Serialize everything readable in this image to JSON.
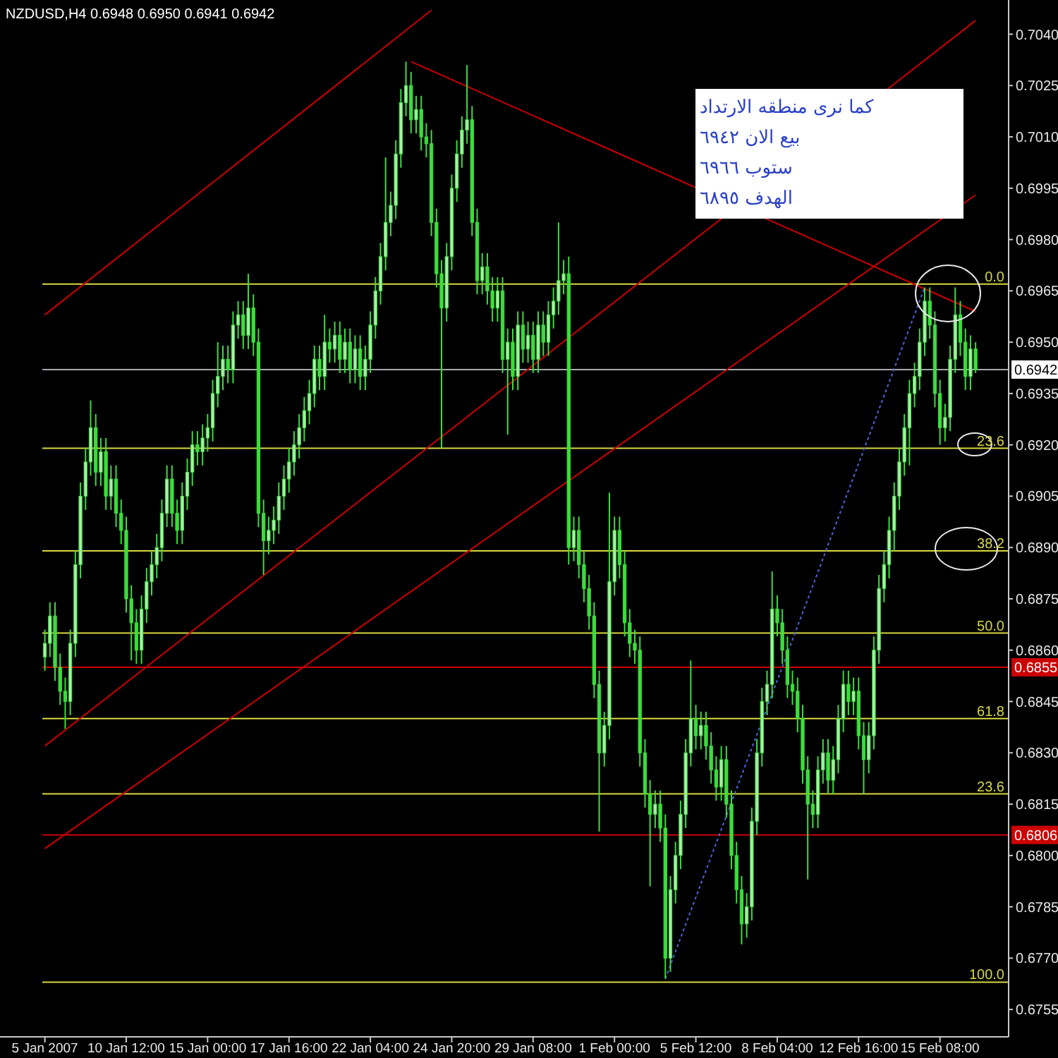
{
  "chart_data": {
    "type": "candlestick",
    "title": "NZDUSD,H4  0.6948 0.6950 0.6941 0.6942",
    "categories": [
      "5 Jan 2007",
      null,
      null,
      null,
      null,
      null,
      null,
      null,
      null,
      null,
      null,
      null,
      null,
      null,
      null,
      null,
      "10 Jan 12:00",
      null,
      null,
      null,
      null,
      null,
      null,
      null,
      null,
      null,
      null,
      null,
      null,
      null,
      null,
      null,
      "15 Jan 00:00",
      null,
      null,
      null,
      null,
      null,
      null,
      null,
      null,
      null,
      null,
      null,
      null,
      null,
      null,
      null,
      "17 Jan 16:00",
      null,
      null,
      null,
      null,
      null,
      null,
      null,
      null,
      null,
      null,
      null,
      null,
      null,
      null,
      null,
      "22 Jan 04:00",
      null,
      null,
      null,
      null,
      null,
      null,
      null,
      null,
      null,
      null,
      null,
      null,
      null,
      null,
      null,
      "24 Jan 20:00",
      null,
      null,
      null,
      null,
      null,
      null,
      null,
      null,
      null,
      null,
      null,
      null,
      null,
      null,
      null,
      "29 Jan 08:00",
      null,
      null,
      null,
      null,
      null,
      null,
      null,
      null,
      null,
      null,
      null,
      null,
      null,
      null,
      null,
      "1 Feb 00:00",
      null,
      null,
      null,
      null,
      null,
      null,
      null,
      null,
      null,
      null,
      null,
      null,
      null,
      null,
      null,
      "5 Feb 12:00",
      null,
      null,
      null,
      null,
      null,
      null,
      null,
      null,
      null,
      null,
      null,
      null,
      null,
      null,
      null,
      "8 Feb 04:00",
      null,
      null,
      null,
      null,
      null,
      null,
      null,
      null,
      null,
      null,
      null,
      null,
      null,
      null,
      null,
      "12 Feb 16:00",
      null,
      null,
      null,
      null,
      null,
      null,
      null,
      null,
      null,
      null,
      null,
      null,
      null,
      null,
      null,
      "15 Feb 08:00",
      null,
      null,
      null,
      null,
      null,
      null,
      null
    ],
    "ylim": [
      0.6747,
      0.705
    ],
    "yticks": [
      {
        "value": 0.6755,
        "label": "0.6755"
      },
      {
        "value": 0.677,
        "label": "0.6770"
      },
      {
        "value": 0.6785,
        "label": "0.6785"
      },
      {
        "value": 0.68,
        "label": "0.6800"
      },
      {
        "value": 0.6815,
        "label": "0.6815"
      },
      {
        "value": 0.683,
        "label": "0.6830"
      },
      {
        "value": 0.6845,
        "label": "0.6845"
      },
      {
        "value": 0.686,
        "label": "0.6860"
      },
      {
        "value": 0.6875,
        "label": "0.6875"
      },
      {
        "value": 0.689,
        "label": "0.6890"
      },
      {
        "value": 0.6905,
        "label": "0.6905"
      },
      {
        "value": 0.692,
        "label": "0.6920"
      },
      {
        "value": 0.6935,
        "label": "0.6935"
      },
      {
        "value": 0.695,
        "label": "0.6950"
      },
      {
        "value": 0.6965,
        "label": "0.6965"
      },
      {
        "value": 0.698,
        "label": "0.6980"
      },
      {
        "value": 0.6995,
        "label": "0.6995"
      },
      {
        "value": 0.701,
        "label": "0.7010"
      },
      {
        "value": 0.7025,
        "label": "0.7025"
      },
      {
        "value": 0.704,
        "label": "0.7040"
      }
    ],
    "series": [
      {
        "type": "candlestick",
        "color": "#3cdc3c",
        "ohlc": [
          [
            0.6858,
            0.6866,
            0.6854,
            0.6862
          ],
          [
            0.6862,
            0.6874,
            0.6858,
            0.687
          ],
          [
            0.687,
            0.6874,
            0.6851,
            0.6855
          ],
          [
            0.6855,
            0.6859,
            0.6844,
            0.6848
          ],
          [
            0.6848,
            0.6852,
            0.6837,
            0.6845
          ],
          [
            0.6845,
            0.6866,
            0.6841,
            0.6862
          ],
          [
            0.6862,
            0.6889,
            0.6858,
            0.6885
          ],
          [
            0.6885,
            0.6909,
            0.6881,
            0.6905
          ],
          [
            0.6905,
            0.6919,
            0.6901,
            0.6915
          ],
          [
            0.6915,
            0.6933,
            0.6911,
            0.6925
          ],
          [
            0.6925,
            0.6929,
            0.6908,
            0.6912
          ],
          [
            0.6912,
            0.6922,
            0.6908,
            0.6918
          ],
          [
            0.6918,
            0.6922,
            0.6901,
            0.6905
          ],
          [
            0.6905,
            0.6914,
            0.6901,
            0.691
          ],
          [
            0.691,
            0.6914,
            0.6896,
            0.69
          ],
          [
            0.69,
            0.6904,
            0.6891,
            0.6895
          ],
          [
            0.6895,
            0.6899,
            0.6871,
            0.6875
          ],
          [
            0.6875,
            0.6879,
            0.6857,
            0.6868
          ],
          [
            0.6868,
            0.6872,
            0.6856,
            0.686
          ],
          [
            0.686,
            0.6876,
            0.6856,
            0.6872
          ],
          [
            0.6872,
            0.6884,
            0.6868,
            0.688
          ],
          [
            0.688,
            0.6889,
            0.6876,
            0.6885
          ],
          [
            0.6885,
            0.6894,
            0.6881,
            0.689
          ],
          [
            0.689,
            0.6904,
            0.6886,
            0.69
          ],
          [
            0.69,
            0.6914,
            0.6896,
            0.691
          ],
          [
            0.691,
            0.6914,
            0.6896,
            0.69
          ],
          [
            0.69,
            0.6904,
            0.6891,
            0.6895
          ],
          [
            0.6895,
            0.6909,
            0.6891,
            0.6905
          ],
          [
            0.6905,
            0.6916,
            0.6901,
            0.6912
          ],
          [
            0.6912,
            0.6924,
            0.6908,
            0.692
          ],
          [
            0.692,
            0.6924,
            0.6914,
            0.6918
          ],
          [
            0.6918,
            0.6926,
            0.6914,
            0.6922
          ],
          [
            0.6922,
            0.6929,
            0.6918,
            0.6925
          ],
          [
            0.6925,
            0.6939,
            0.6921,
            0.6935
          ],
          [
            0.6935,
            0.695,
            0.6931,
            0.694
          ],
          [
            0.694,
            0.6949,
            0.6936,
            0.6945
          ],
          [
            0.6945,
            0.6949,
            0.6938,
            0.6942
          ],
          [
            0.6942,
            0.6959,
            0.6938,
            0.6955
          ],
          [
            0.6955,
            0.6962,
            0.6951,
            0.6958
          ],
          [
            0.6958,
            0.6962,
            0.6948,
            0.6952
          ],
          [
            0.6952,
            0.697,
            0.6948,
            0.696
          ],
          [
            0.696,
            0.6964,
            0.6946,
            0.695
          ],
          [
            0.695,
            0.6954,
            0.6896,
            0.69
          ],
          [
            0.69,
            0.6904,
            0.6882,
            0.6892
          ],
          [
            0.6892,
            0.6899,
            0.6888,
            0.6895
          ],
          [
            0.6895,
            0.6902,
            0.6891,
            0.6898
          ],
          [
            0.6898,
            0.6909,
            0.6894,
            0.6905
          ],
          [
            0.6905,
            0.6914,
            0.6901,
            0.691
          ],
          [
            0.691,
            0.6919,
            0.6906,
            0.6915
          ],
          [
            0.6915,
            0.6924,
            0.6911,
            0.692
          ],
          [
            0.692,
            0.6929,
            0.6916,
            0.6925
          ],
          [
            0.6925,
            0.6934,
            0.6921,
            0.693
          ],
          [
            0.693,
            0.6939,
            0.6926,
            0.6935
          ],
          [
            0.6935,
            0.6949,
            0.6931,
            0.6945
          ],
          [
            0.6945,
            0.6949,
            0.6936,
            0.694
          ],
          [
            0.694,
            0.6958,
            0.6936,
            0.695
          ],
          [
            0.695,
            0.6954,
            0.6944,
            0.6948
          ],
          [
            0.6948,
            0.6956,
            0.6944,
            0.6952
          ],
          [
            0.6952,
            0.6956,
            0.6941,
            0.6945
          ],
          [
            0.6945,
            0.6954,
            0.6941,
            0.695
          ],
          [
            0.695,
            0.6954,
            0.6938,
            0.6942
          ],
          [
            0.6942,
            0.6952,
            0.6938,
            0.6948
          ],
          [
            0.6948,
            0.6952,
            0.6936,
            0.694
          ],
          [
            0.694,
            0.6949,
            0.6936,
            0.6945
          ],
          [
            0.6945,
            0.6959,
            0.6941,
            0.6955
          ],
          [
            0.6955,
            0.6969,
            0.6951,
            0.6965
          ],
          [
            0.6965,
            0.6979,
            0.6961,
            0.6975
          ],
          [
            0.6975,
            0.7004,
            0.6971,
            0.6985
          ],
          [
            0.6985,
            0.6994,
            0.6981,
            0.699
          ],
          [
            0.699,
            0.7009,
            0.6986,
            0.7005
          ],
          [
            0.7005,
            0.7024,
            0.7001,
            0.702
          ],
          [
            0.702,
            0.7032,
            0.7016,
            0.7025
          ],
          [
            0.7025,
            0.7029,
            0.7011,
            0.7015
          ],
          [
            0.7015,
            0.7022,
            0.7011,
            0.7018
          ],
          [
            0.7018,
            0.7022,
            0.7006,
            0.701
          ],
          [
            0.701,
            0.7014,
            0.7004,
            0.7008
          ],
          [
            0.7008,
            0.7012,
            0.6981,
            0.6985
          ],
          [
            0.6985,
            0.6989,
            0.6966,
            0.697
          ],
          [
            0.697,
            0.6974,
            0.6919,
            0.696
          ],
          [
            0.696,
            0.6979,
            0.6956,
            0.6975
          ],
          [
            0.6975,
            0.6999,
            0.6971,
            0.6995
          ],
          [
            0.6995,
            0.7009,
            0.6991,
            0.7005
          ],
          [
            0.7005,
            0.7016,
            0.7001,
            0.7012
          ],
          [
            0.7012,
            0.7031,
            0.7008,
            0.7015
          ],
          [
            0.7015,
            0.7019,
            0.6981,
            0.6985
          ],
          [
            0.6985,
            0.6989,
            0.6964,
            0.6968
          ],
          [
            0.6968,
            0.6976,
            0.6964,
            0.6972
          ],
          [
            0.6972,
            0.6976,
            0.6961,
            0.6965
          ],
          [
            0.6965,
            0.6969,
            0.6956,
            0.696
          ],
          [
            0.696,
            0.6969,
            0.6956,
            0.6965
          ],
          [
            0.6965,
            0.6969,
            0.6941,
            0.6945
          ],
          [
            0.6945,
            0.6954,
            0.6923,
            0.695
          ],
          [
            0.695,
            0.6954,
            0.6936,
            0.694
          ],
          [
            0.694,
            0.6959,
            0.6936,
            0.6955
          ],
          [
            0.6955,
            0.6959,
            0.6944,
            0.6948
          ],
          [
            0.6948,
            0.6956,
            0.6944,
            0.6952
          ],
          [
            0.6952,
            0.6956,
            0.6941,
            0.6945
          ],
          [
            0.6945,
            0.6959,
            0.6941,
            0.6955
          ],
          [
            0.6955,
            0.6959,
            0.6946,
            0.695
          ],
          [
            0.695,
            0.6962,
            0.6946,
            0.6958
          ],
          [
            0.6958,
            0.6966,
            0.6954,
            0.6962
          ],
          [
            0.6962,
            0.6985,
            0.6958,
            0.6968
          ],
          [
            0.6968,
            0.6974,
            0.6964,
            0.697
          ],
          [
            0.697,
            0.6975,
            0.6885,
            0.689
          ],
          [
            0.689,
            0.6899,
            0.6886,
            0.6895
          ],
          [
            0.6895,
            0.6899,
            0.6881,
            0.6885
          ],
          [
            0.6885,
            0.6889,
            0.6874,
            0.6878
          ],
          [
            0.6878,
            0.6882,
            0.6866,
            0.687
          ],
          [
            0.687,
            0.6874,
            0.6846,
            0.685
          ],
          [
            0.685,
            0.6854,
            0.6807,
            0.683
          ],
          [
            0.683,
            0.6842,
            0.6826,
            0.6838
          ],
          [
            0.6838,
            0.6906,
            0.6834,
            0.688
          ],
          [
            0.688,
            0.6899,
            0.6876,
            0.6895
          ],
          [
            0.6895,
            0.6899,
            0.6881,
            0.6885
          ],
          [
            0.6885,
            0.6889,
            0.6864,
            0.6868
          ],
          [
            0.6868,
            0.6872,
            0.6858,
            0.6862
          ],
          [
            0.6862,
            0.6866,
            0.6856,
            0.686
          ],
          [
            0.686,
            0.6864,
            0.6826,
            0.683
          ],
          [
            0.683,
            0.6834,
            0.6814,
            0.6818
          ],
          [
            0.6818,
            0.6822,
            0.6791,
            0.6812
          ],
          [
            0.6812,
            0.6819,
            0.6808,
            0.6815
          ],
          [
            0.6815,
            0.6819,
            0.6804,
            0.6808
          ],
          [
            0.6808,
            0.6812,
            0.6764,
            0.677
          ],
          [
            0.677,
            0.6794,
            0.6766,
            0.679
          ],
          [
            0.679,
            0.6804,
            0.6786,
            0.68
          ],
          [
            0.68,
            0.6816,
            0.6796,
            0.6812
          ],
          [
            0.6812,
            0.6834,
            0.6808,
            0.683
          ],
          [
            0.683,
            0.6857,
            0.6826,
            0.684
          ],
          [
            0.684,
            0.6844,
            0.6831,
            0.6835
          ],
          [
            0.6835,
            0.6842,
            0.6831,
            0.6838
          ],
          [
            0.6838,
            0.6842,
            0.6828,
            0.6832
          ],
          [
            0.6832,
            0.6836,
            0.6821,
            0.6825
          ],
          [
            0.6825,
            0.6829,
            0.6816,
            0.682
          ],
          [
            0.682,
            0.6832,
            0.6816,
            0.6828
          ],
          [
            0.6828,
            0.6832,
            0.6811,
            0.6815
          ],
          [
            0.6815,
            0.6819,
            0.6796,
            0.68
          ],
          [
            0.68,
            0.6804,
            0.6786,
            0.679
          ],
          [
            0.679,
            0.6794,
            0.6774,
            0.678
          ],
          [
            0.678,
            0.6789,
            0.6776,
            0.6785
          ],
          [
            0.6785,
            0.6814,
            0.6781,
            0.681
          ],
          [
            0.681,
            0.6834,
            0.6806,
            0.683
          ],
          [
            0.683,
            0.6849,
            0.6826,
            0.6845
          ],
          [
            0.6845,
            0.6854,
            0.6841,
            0.685
          ],
          [
            0.685,
            0.6883,
            0.6846,
            0.6872
          ],
          [
            0.6872,
            0.6876,
            0.6864,
            0.6868
          ],
          [
            0.6868,
            0.6872,
            0.6856,
            0.686
          ],
          [
            0.686,
            0.6864,
            0.6846,
            0.685
          ],
          [
            0.685,
            0.6854,
            0.6844,
            0.6848
          ],
          [
            0.6848,
            0.6852,
            0.6836,
            0.684
          ],
          [
            0.684,
            0.6844,
            0.6821,
            0.6825
          ],
          [
            0.6825,
            0.6829,
            0.6793,
            0.6815
          ],
          [
            0.6815,
            0.6819,
            0.6808,
            0.6812
          ],
          [
            0.6812,
            0.6829,
            0.6808,
            0.6825
          ],
          [
            0.6825,
            0.6834,
            0.6821,
            0.683
          ],
          [
            0.683,
            0.6834,
            0.6818,
            0.6822
          ],
          [
            0.6822,
            0.6832,
            0.6818,
            0.6828
          ],
          [
            0.6828,
            0.6844,
            0.6824,
            0.684
          ],
          [
            0.684,
            0.6854,
            0.6836,
            0.685
          ],
          [
            0.685,
            0.6854,
            0.6841,
            0.6845
          ],
          [
            0.6845,
            0.6852,
            0.6841,
            0.6848
          ],
          [
            0.6848,
            0.6852,
            0.6831,
            0.6835
          ],
          [
            0.6835,
            0.6839,
            0.6818,
            0.6828
          ],
          [
            0.6828,
            0.6839,
            0.6824,
            0.6835
          ],
          [
            0.6835,
            0.6864,
            0.6831,
            0.686
          ],
          [
            0.686,
            0.6882,
            0.6856,
            0.6878
          ],
          [
            0.6878,
            0.6889,
            0.6874,
            0.6885
          ],
          [
            0.6885,
            0.6899,
            0.6881,
            0.6895
          ],
          [
            0.6895,
            0.6909,
            0.6889,
            0.6905
          ],
          [
            0.6905,
            0.6919,
            0.6901,
            0.6915
          ],
          [
            0.6915,
            0.6929,
            0.6911,
            0.6925
          ],
          [
            0.6925,
            0.6939,
            0.6914,
            0.6935
          ],
          [
            0.6935,
            0.6944,
            0.6931,
            0.694
          ],
          [
            0.694,
            0.6954,
            0.6936,
            0.695
          ],
          [
            0.695,
            0.6966,
            0.6946,
            0.6962
          ],
          [
            0.6962,
            0.6966,
            0.6951,
            0.6955
          ],
          [
            0.6955,
            0.6959,
            0.6931,
            0.6935
          ],
          [
            0.6935,
            0.6939,
            0.692,
            0.6925
          ],
          [
            0.6925,
            0.6932,
            0.6921,
            0.6928
          ],
          [
            0.6928,
            0.6949,
            0.6924,
            0.6945
          ],
          [
            0.6945,
            0.6966,
            0.6941,
            0.6958
          ],
          [
            0.6958,
            0.6962,
            0.6946,
            0.695
          ],
          [
            0.695,
            0.6954,
            0.6936,
            0.694
          ],
          [
            0.694,
            0.6952,
            0.6936,
            0.6948
          ],
          [
            0.6948,
            0.695,
            0.6941,
            0.6942
          ]
        ]
      },
      {
        "type": "line",
        "color": "#cc0000",
        "values": [
          0.6958,
          null,
          null,
          null,
          null,
          null,
          null,
          null,
          null,
          null,
          null,
          null,
          null,
          null,
          null,
          null,
          null,
          null,
          null,
          null,
          null,
          null,
          null,
          null,
          null,
          null,
          null,
          null,
          null,
          null,
          null,
          null,
          null,
          null,
          null,
          null,
          null,
          null,
          null,
          null,
          null,
          null,
          null,
          null,
          null,
          null,
          null,
          null,
          null,
          null,
          null,
          null,
          null,
          null,
          null,
          null,
          null,
          null,
          null,
          null,
          null,
          null,
          null,
          null,
          null,
          null,
          null,
          null,
          null,
          null,
          null,
          null,
          null,
          null,
          null,
          null,
          0.7047,
          null,
          null,
          null,
          null,
          null,
          null,
          null,
          null,
          null,
          null,
          null,
          null,
          null,
          null,
          null,
          null,
          null,
          null,
          null,
          null,
          null,
          null,
          null,
          null,
          null,
          null,
          null,
          null,
          null,
          null,
          null,
          null,
          null,
          null,
          null,
          null,
          null,
          null,
          null,
          null,
          null,
          null,
          null,
          null,
          null,
          null,
          null,
          null,
          null,
          null,
          null,
          null,
          null,
          null,
          null,
          null,
          null,
          null,
          null,
          null,
          null,
          null,
          null,
          null,
          null,
          null,
          null,
          null,
          null,
          null,
          null,
          null,
          null,
          null,
          null,
          null,
          null,
          null,
          null,
          null,
          null,
          null,
          null,
          null,
          null,
          null,
          null,
          null,
          null,
          null,
          null,
          null,
          null,
          null,
          null,
          null,
          null,
          null,
          null,
          null,
          null,
          null,
          null,
          null,
          null,
          null,
          null
        ]
      },
      {
        "type": "line",
        "color": "#cc0000",
        "values": [
          0.6832,
          null,
          null,
          null,
          null,
          null,
          null,
          null,
          null,
          null,
          null,
          null,
          null,
          null,
          null,
          null,
          null,
          null,
          null,
          null,
          null,
          null,
          null,
          null,
          null,
          null,
          null,
          null,
          null,
          null,
          null,
          null,
          null,
          null,
          null,
          null,
          null,
          null,
          null,
          null,
          null,
          null,
          null,
          null,
          null,
          null,
          null,
          null,
          null,
          null,
          null,
          null,
          null,
          null,
          null,
          null,
          null,
          null,
          null,
          null,
          null,
          null,
          null,
          null,
          null,
          null,
          null,
          null,
          null,
          null,
          null,
          null,
          null,
          null,
          null,
          null,
          null,
          null,
          null,
          null,
          null,
          null,
          null,
          null,
          null,
          null,
          null,
          null,
          null,
          null,
          null,
          null,
          null,
          null,
          null,
          null,
          null,
          null,
          null,
          null,
          null,
          null,
          null,
          null,
          null,
          null,
          null,
          null,
          null,
          null,
          null,
          null,
          null,
          null,
          null,
          null,
          null,
          null,
          null,
          null,
          null,
          null,
          null,
          null,
          null,
          null,
          null,
          null,
          null,
          null,
          null,
          null,
          null,
          null,
          null,
          null,
          null,
          null,
          null,
          null,
          null,
          null,
          null,
          null,
          null,
          null,
          null,
          null,
          null,
          null,
          null,
          null,
          null,
          null,
          null,
          null,
          null,
          null,
          null,
          null,
          null,
          null,
          null,
          null,
          null,
          null,
          null,
          null,
          null,
          null,
          null,
          null,
          null,
          null,
          null,
          null,
          null,
          null,
          null,
          null,
          null,
          null,
          null,
          0.7044
        ]
      },
      {
        "type": "line",
        "color": "#cc0000",
        "values": [
          0.6802,
          null,
          null,
          null,
          null,
          null,
          null,
          null,
          null,
          null,
          null,
          null,
          null,
          null,
          null,
          null,
          null,
          null,
          null,
          null,
          null,
          null,
          null,
          null,
          null,
          null,
          null,
          null,
          null,
          null,
          null,
          null,
          null,
          null,
          null,
          null,
          null,
          null,
          null,
          null,
          null,
          null,
          null,
          null,
          null,
          null,
          null,
          null,
          null,
          null,
          null,
          null,
          null,
          null,
          null,
          null,
          null,
          null,
          null,
          null,
          null,
          null,
          null,
          null,
          null,
          null,
          null,
          null,
          null,
          null,
          null,
          null,
          null,
          null,
          null,
          null,
          null,
          null,
          null,
          null,
          null,
          null,
          null,
          null,
          null,
          null,
          null,
          null,
          null,
          null,
          null,
          null,
          null,
          null,
          null,
          null,
          null,
          null,
          null,
          null,
          null,
          null,
          null,
          null,
          null,
          null,
          null,
          null,
          null,
          null,
          null,
          null,
          null,
          null,
          null,
          null,
          null,
          null,
          null,
          null,
          null,
          null,
          null,
          null,
          null,
          null,
          null,
          null,
          null,
          null,
          null,
          null,
          null,
          null,
          null,
          null,
          null,
          null,
          null,
          null,
          null,
          null,
          null,
          null,
          null,
          null,
          null,
          null,
          null,
          null,
          null,
          null,
          null,
          null,
          null,
          null,
          null,
          null,
          null,
          null,
          null,
          null,
          null,
          null,
          null,
          null,
          null,
          null,
          null,
          null,
          null,
          null,
          null,
          null,
          null,
          null,
          null,
          null,
          null,
          null,
          null,
          null,
          null,
          0.6993
        ]
      },
      {
        "type": "line",
        "color": "#cc0000",
        "values": [
          null,
          null,
          null,
          null,
          null,
          null,
          null,
          null,
          null,
          null,
          null,
          null,
          null,
          null,
          null,
          null,
          null,
          null,
          null,
          null,
          null,
          null,
          null,
          null,
          null,
          null,
          null,
          null,
          null,
          null,
          null,
          null,
          null,
          null,
          null,
          null,
          null,
          null,
          null,
          null,
          null,
          null,
          null,
          null,
          null,
          null,
          null,
          null,
          null,
          null,
          null,
          null,
          null,
          null,
          null,
          null,
          null,
          null,
          null,
          null,
          null,
          null,
          null,
          null,
          null,
          null,
          null,
          null,
          null,
          null,
          null,
          null,
          0.7032,
          null,
          null,
          null,
          null,
          null,
          null,
          null,
          null,
          null,
          null,
          null,
          null,
          null,
          null,
          null,
          null,
          null,
          null,
          null,
          null,
          null,
          null,
          null,
          null,
          null,
          null,
          null,
          null,
          null,
          null,
          null,
          null,
          null,
          null,
          null,
          null,
          null,
          null,
          null,
          null,
          null,
          null,
          null,
          null,
          null,
          null,
          null,
          null,
          null,
          null,
          null,
          null,
          null,
          null,
          null,
          null,
          null,
          null,
          null,
          null,
          null,
          null,
          null,
          null,
          null,
          null,
          null,
          null,
          null,
          null,
          null,
          null,
          null,
          null,
          null,
          null,
          null,
          null,
          null,
          null,
          null,
          null,
          null,
          null,
          null,
          null,
          null,
          null,
          null,
          null,
          null,
          null,
          null,
          null,
          null,
          null,
          null,
          null,
          null,
          null,
          null,
          null,
          null,
          null,
          null,
          null,
          null,
          null,
          null,
          null,
          0.6959
        ]
      },
      {
        "type": "line",
        "color": "#4a66dd",
        "line_style": "dotted",
        "values": [
          null,
          null,
          null,
          null,
          null,
          null,
          null,
          null,
          null,
          null,
          null,
          null,
          null,
          null,
          null,
          null,
          null,
          null,
          null,
          null,
          null,
          null,
          null,
          null,
          null,
          null,
          null,
          null,
          null,
          null,
          null,
          null,
          null,
          null,
          null,
          null,
          null,
          null,
          null,
          null,
          null,
          null,
          null,
          null,
          null,
          null,
          null,
          null,
          null,
          null,
          null,
          null,
          null,
          null,
          null,
          null,
          null,
          null,
          null,
          null,
          null,
          null,
          null,
          null,
          null,
          null,
          null,
          null,
          null,
          null,
          null,
          null,
          null,
          null,
          null,
          null,
          null,
          null,
          null,
          null,
          null,
          null,
          null,
          null,
          null,
          null,
          null,
          null,
          null,
          null,
          null,
          null,
          null,
          null,
          null,
          null,
          null,
          null,
          null,
          null,
          null,
          null,
          null,
          null,
          null,
          null,
          null,
          null,
          null,
          null,
          null,
          null,
          null,
          null,
          null,
          null,
          null,
          null,
          null,
          null,
          null,
          null,
          0.6764,
          null,
          null,
          null,
          null,
          null,
          null,
          null,
          null,
          null,
          null,
          null,
          null,
          null,
          null,
          null,
          null,
          null,
          null,
          null,
          null,
          null,
          null,
          null,
          null,
          null,
          null,
          null,
          null,
          null,
          null,
          null,
          null,
          null,
          null,
          null,
          null,
          null,
          null,
          null,
          null,
          null,
          null,
          null,
          null,
          null,
          null,
          null,
          null,
          null,
          null,
          0.6966,
          null,
          null,
          null,
          null,
          null,
          null,
          null,
          null,
          null,
          null
        ]
      }
    ],
    "ref_lines": [
      {
        "axis": "y",
        "value": 0.6942,
        "label": "0.6942",
        "color": "#a8a8b0"
      },
      {
        "axis": "y",
        "value": 0.6855,
        "label": "0.6855",
        "color": "#cc0000"
      },
      {
        "axis": "y",
        "value": 0.6806,
        "label": "0.6806",
        "color": "#cc0000"
      },
      {
        "axis": "y",
        "value": 0.6967,
        "color": "#d8d840"
      },
      {
        "axis": "y",
        "value": 0.6919,
        "color": "#d8d840"
      },
      {
        "axis": "y",
        "value": 0.6889,
        "color": "#d8d840"
      },
      {
        "axis": "y",
        "value": 0.6865,
        "color": "#d8d840"
      },
      {
        "axis": "y",
        "value": 0.684,
        "color": "#d8d840"
      },
      {
        "axis": "y",
        "value": 0.6818,
        "color": "#d8d840"
      },
      {
        "axis": "y",
        "value": 0.6763,
        "color": "#d8d840"
      }
    ],
    "annotations": [
      "كما نرى منطقه الارتداد",
      "بيع الان ٦٩٤٢",
      "ستوب ٦٩٦٦",
      "الهدف ٦٨٩٥",
      {
        "text": "0.0",
        "y": 0.6967
      },
      {
        "text": "23.6",
        "y": 0.6919
      },
      {
        "text": "38.2",
        "y": 0.6889
      },
      {
        "text": "50.0",
        "y": 0.6865
      },
      {
        "text": "61.8",
        "y": 0.684
      },
      {
        "text": "23.6",
        "y": 0.6818
      },
      {
        "text": "100.0",
        "y": 0.6763
      }
    ]
  }
}
